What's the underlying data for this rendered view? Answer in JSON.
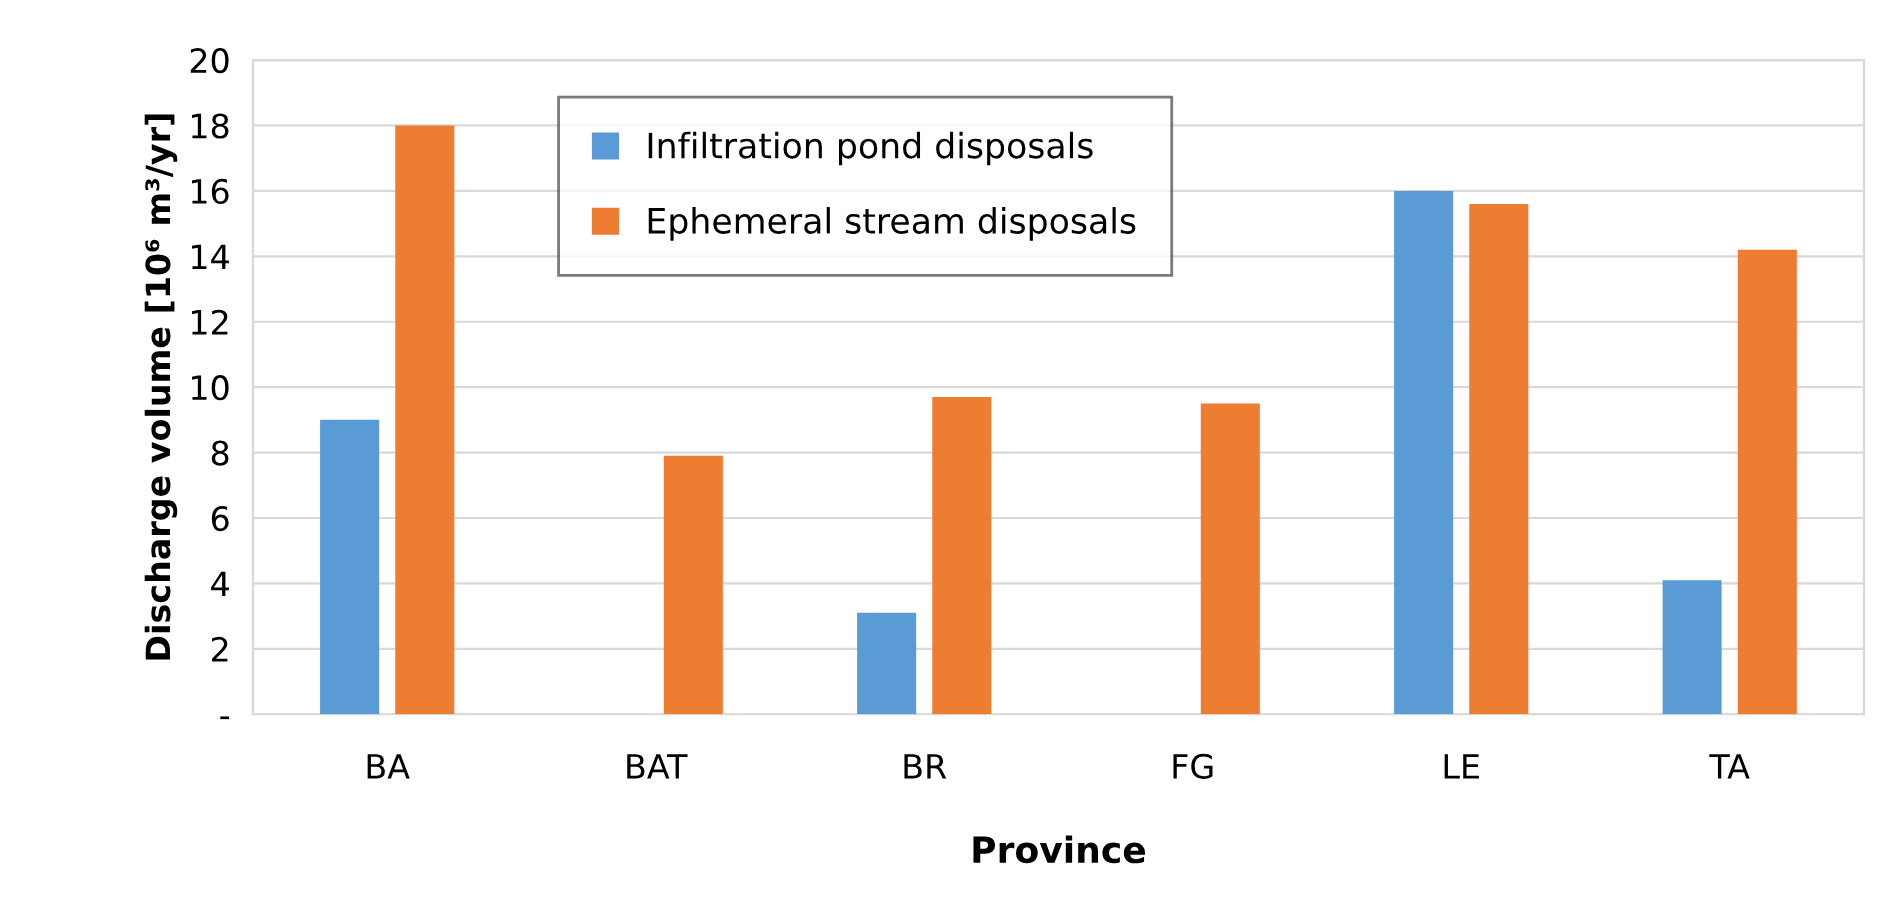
{
  "chart_data": {
    "type": "bar",
    "xlabel": "Province",
    "ylabel": "Discharge volume [10⁶ m³/yr]",
    "categories": [
      "BA",
      "BAT",
      "BR",
      "FG",
      "LE",
      "TA"
    ],
    "series": [
      {
        "name": "Infiltration pond disposals",
        "color": "#5b9bd5",
        "values": [
          9.0,
          null,
          3.1,
          null,
          16.0,
          4.1
        ]
      },
      {
        "name": "Ephemeral stream disposals",
        "color": "#ed7d31",
        "values": [
          18.0,
          7.9,
          9.7,
          9.5,
          15.6,
          14.2
        ]
      }
    ],
    "ylim": [
      0,
      20
    ],
    "yticks": [
      {
        "value": 0,
        "label": "-"
      },
      2,
      4,
      6,
      8,
      10,
      12,
      14,
      16,
      18,
      20
    ],
    "grid": "y",
    "legend": "top"
  }
}
